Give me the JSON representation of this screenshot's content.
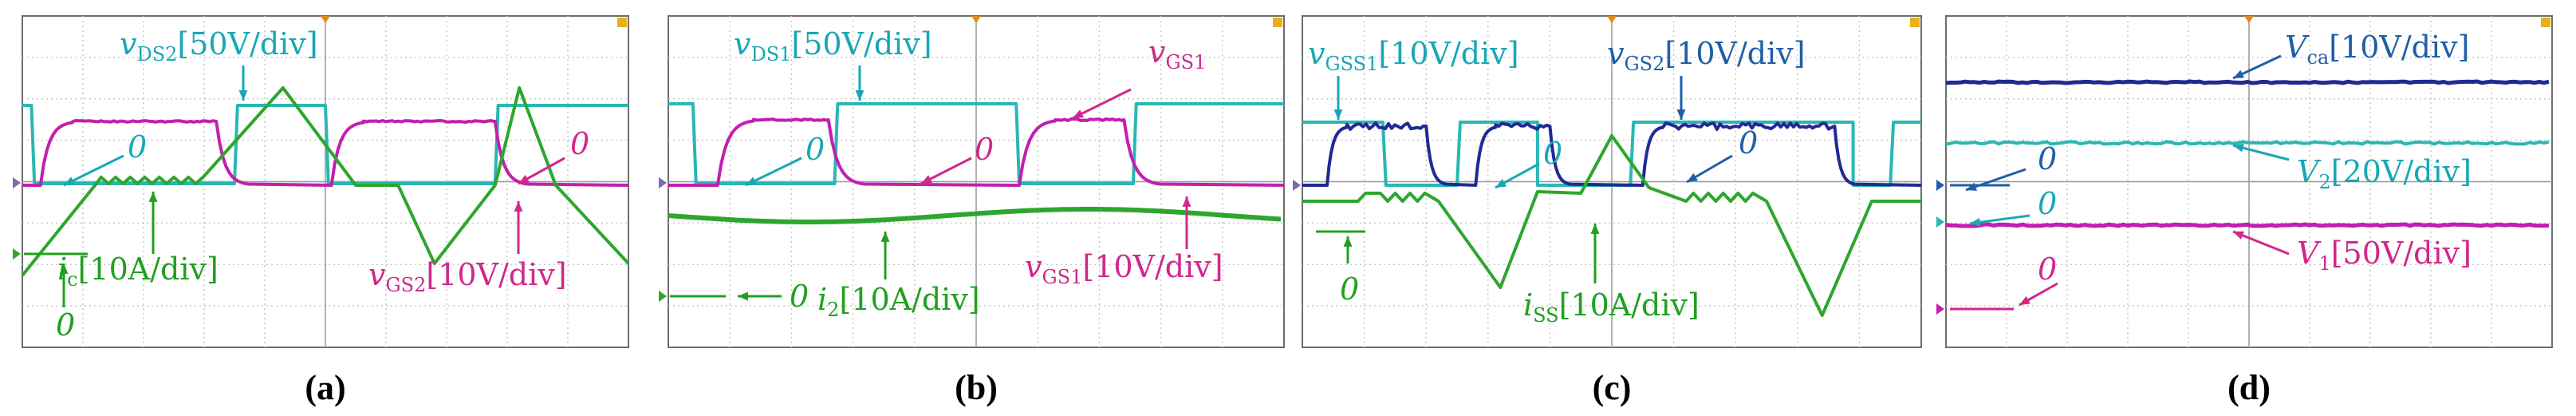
{
  "colors": {
    "cyan": "#2ab7b4",
    "magenta": "#c21fb0",
    "green": "#2ea62e",
    "navy": "#1f2a93",
    "grid": "#c9c9c9",
    "label_cyan": "#19a7b5",
    "label_magenta": "#d0288c",
    "label_green": "#20a020",
    "label_blue": "#1f5fa8"
  },
  "chart_data": [
    {
      "panel": "(a)",
      "type": "line",
      "caption": "(a)",
      "grid": true,
      "labels": [
        {
          "name": "vds2",
          "text": "v",
          "sub": "DS2",
          "rest": "[50V/div]",
          "color": "cyan"
        },
        {
          "name": "zero-cyan",
          "text": "0",
          "color": "cyan"
        },
        {
          "name": "ic",
          "text": "i",
          "sub": "c",
          "rest": "[10A/div]",
          "color": "green"
        },
        {
          "name": "zero-green",
          "text": "0",
          "color": "green"
        },
        {
          "name": "vgs2",
          "text": "v",
          "sub": "GS2",
          "rest": "[10V/div]",
          "color": "magenta"
        },
        {
          "name": "zero-magenta",
          "text": "0",
          "color": "magenta"
        }
      ]
    },
    {
      "panel": "(b)",
      "type": "line",
      "caption": "(b)",
      "grid": true,
      "labels": [
        {
          "name": "vds1",
          "text": "v",
          "sub": "DS1",
          "rest": "[50V/div]",
          "color": "cyan"
        },
        {
          "name": "vgs1-top",
          "text": "v",
          "sub": "GS1",
          "rest": "",
          "color": "magenta"
        },
        {
          "name": "zero-cyan",
          "text": "0",
          "color": "cyan"
        },
        {
          "name": "zero-magenta",
          "text": "0",
          "color": "magenta"
        },
        {
          "name": "vgs1",
          "text": "v",
          "sub": "GS1",
          "rest": "[10V/div]",
          "color": "magenta"
        },
        {
          "name": "i2",
          "text": "i",
          "sub": "2",
          "rest": "[10A/div]",
          "color": "green"
        },
        {
          "name": "zero-green",
          "text": "0",
          "color": "green"
        }
      ]
    },
    {
      "panel": "(c)",
      "type": "line",
      "caption": "(c)",
      "grid": true,
      "labels": [
        {
          "name": "vgss1",
          "text": "v",
          "sub": "GSS1",
          "rest": "[10V/div]",
          "color": "cyan"
        },
        {
          "name": "vgs2",
          "text": "v",
          "sub": "GS2",
          "rest": "[10V/div]",
          "color": "blue"
        },
        {
          "name": "zero-cyan",
          "text": "0",
          "color": "cyan"
        },
        {
          "name": "zero-blue",
          "text": "0",
          "color": "blue"
        },
        {
          "name": "zero-green",
          "text": "0",
          "color": "green"
        },
        {
          "name": "iss",
          "text": "i",
          "sub": "SS",
          "rest": "[10A/div]",
          "color": "green"
        }
      ]
    },
    {
      "panel": "(d)",
      "type": "line",
      "caption": "(d)",
      "grid": true,
      "labels": [
        {
          "name": "vca",
          "text": "V",
          "sub": "ca",
          "rest": "[10V/div]",
          "color": "blue"
        },
        {
          "name": "zero-blue",
          "text": "0",
          "color": "blue"
        },
        {
          "name": "v2",
          "text": "V",
          "sub": "2",
          "rest": "[20V/div]",
          "color": "cyan"
        },
        {
          "name": "zero-cyan",
          "text": "0",
          "color": "cyan"
        },
        {
          "name": "v1",
          "text": "V",
          "sub": "1",
          "rest": "[50V/div]",
          "color": "magenta"
        },
        {
          "name": "zero-magenta",
          "text": "0",
          "color": "magenta"
        }
      ]
    }
  ]
}
